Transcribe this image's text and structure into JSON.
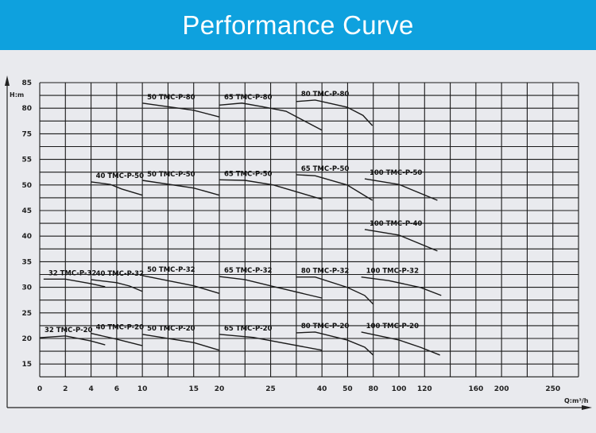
{
  "header": {
    "title": "Performance Curve"
  },
  "colors": {
    "header_bg": "#0ea1de",
    "background": "#e9eaee",
    "grid": "#1a1a1a",
    "curve": "#1a1a1a"
  },
  "chart_data": {
    "type": "line",
    "title": "",
    "xlabel": "Q:m³/h",
    "ylabel": "H:m",
    "grid": true,
    "x_scale": "broken/non-uniform",
    "y_scale": "broken (gap between 55 and 75)",
    "x_ticks": [
      0,
      2,
      4,
      6,
      10,
      15,
      20,
      25,
      40,
      50,
      80,
      100,
      120,
      160,
      200,
      250
    ],
    "y_ticks": [
      85,
      80,
      75,
      55,
      50,
      45,
      40,
      35,
      30,
      25,
      20,
      15
    ],
    "series": [
      {
        "name": "50 TMC-P-80",
        "points": [
          [
            10,
            81
          ],
          [
            15,
            79.6
          ],
          [
            20,
            78.3
          ]
        ]
      },
      {
        "name": "65 TMC-P-80",
        "points": [
          [
            20,
            80.6
          ],
          [
            22.2,
            81
          ],
          [
            24.2,
            80.3
          ],
          [
            29.5,
            79.4
          ],
          [
            40,
            75.7
          ]
        ]
      },
      {
        "name": "80 TMC-P-80",
        "points": [
          [
            32.5,
            81.3
          ],
          [
            38,
            81.6
          ],
          [
            49.8,
            80.2
          ],
          [
            68,
            78.6
          ],
          [
            79,
            76.6
          ]
        ]
      },
      {
        "name": "40 TMC-P-50",
        "points": [
          [
            4,
            50.6
          ],
          [
            5.5,
            50.1
          ],
          [
            6.8,
            49.2
          ],
          [
            10,
            48.0
          ]
        ]
      },
      {
        "name": "50 TMC-P-50",
        "points": [
          [
            10,
            50.9
          ],
          [
            15,
            49.4
          ],
          [
            20,
            48.0
          ]
        ]
      },
      {
        "name": "65 TMC-P-50",
        "points": [
          [
            20,
            51.0
          ],
          [
            22.5,
            50.9
          ],
          [
            25.8,
            50.0
          ],
          [
            40,
            47.2
          ]
        ]
      },
      {
        "name": "65 TMC-P-50",
        "points": [
          [
            32.5,
            52.0
          ],
          [
            38,
            51.8
          ],
          [
            49.8,
            50.0
          ],
          [
            79,
            47.0
          ]
        ]
      },
      {
        "name": "100 TMC-P-50",
        "points": [
          [
            70,
            51.2
          ],
          [
            100,
            50.1
          ],
          [
            130,
            47.0
          ]
        ]
      },
      {
        "name": "100 TMC-P-40",
        "points": [
          [
            70,
            41.3
          ],
          [
            100,
            40.2
          ],
          [
            130,
            37.1
          ]
        ]
      },
      {
        "name": "32 TMC-P-32",
        "points": [
          [
            0.3,
            31.6
          ],
          [
            2,
            31.6
          ],
          [
            4,
            30.7
          ],
          [
            5.1,
            30.1
          ]
        ]
      },
      {
        "name": "40 TMC-P-32",
        "points": [
          [
            4,
            31.5
          ],
          [
            6,
            30.9
          ],
          [
            8,
            30.25
          ],
          [
            10,
            29.2
          ]
        ]
      },
      {
        "name": "50 TMC-P-32",
        "points": [
          [
            10,
            32.3
          ],
          [
            15,
            30.3
          ],
          [
            20,
            28.8
          ]
        ]
      },
      {
        "name": "65 TMC-P-32",
        "points": [
          [
            20,
            32.1
          ],
          [
            22.5,
            31.5
          ],
          [
            26.1,
            30.1
          ],
          [
            40,
            27.9
          ]
        ]
      },
      {
        "name": "80 TMC-P-32",
        "points": [
          [
            32.5,
            32
          ],
          [
            38,
            32
          ],
          [
            49.8,
            30
          ],
          [
            70,
            28.4
          ],
          [
            80,
            26.7
          ]
        ]
      },
      {
        "name": "100 TMC-P-32",
        "points": [
          [
            66,
            32
          ],
          [
            92,
            31.3
          ],
          [
            117,
            29.95
          ],
          [
            133,
            28.4
          ]
        ]
      },
      {
        "name": "32 TMC-P-20",
        "points": [
          [
            0,
            20.15
          ],
          [
            2,
            20.5
          ],
          [
            4,
            19.5
          ],
          [
            5.1,
            18.75
          ]
        ]
      },
      {
        "name": "40 TMC-P-20",
        "points": [
          [
            4,
            21
          ],
          [
            6,
            19.85
          ],
          [
            10,
            18.6
          ]
        ]
      },
      {
        "name": "50 TMC-P-20",
        "points": [
          [
            10,
            20.8
          ],
          [
            15,
            19.2
          ],
          [
            20,
            17.7
          ]
        ]
      },
      {
        "name": "65 TMC-P-20",
        "points": [
          [
            20,
            20.8
          ],
          [
            23.3,
            20.2
          ],
          [
            40,
            17.7
          ]
        ]
      },
      {
        "name": "80 TMC-P-20",
        "points": [
          [
            32.5,
            21.1
          ],
          [
            38,
            21.25
          ],
          [
            49.8,
            19.7
          ],
          [
            70,
            18.3
          ],
          [
            80,
            16.75
          ]
        ]
      },
      {
        "name": "100 TMC-P-20",
        "points": [
          [
            66,
            21.25
          ],
          [
            100,
            19.7
          ],
          [
            117,
            18.25
          ],
          [
            132,
            16.75
          ]
        ]
      }
    ]
  }
}
